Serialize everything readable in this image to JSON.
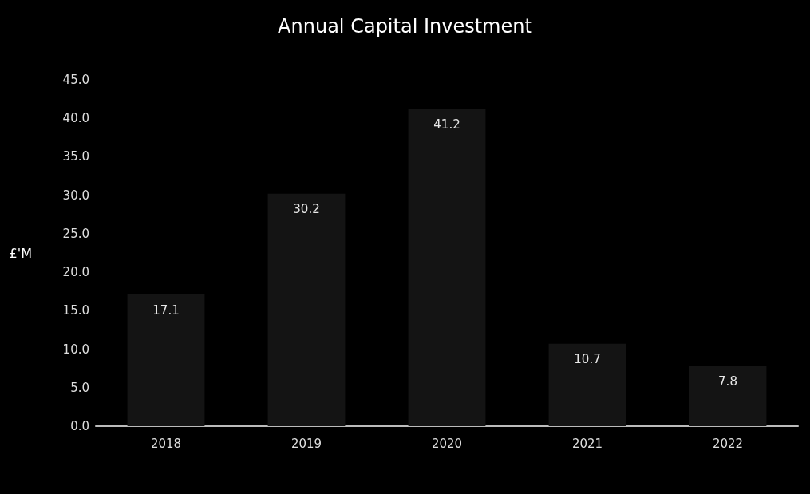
{
  "chart_data": {
    "type": "bar",
    "title": "Annual Capital Investment",
    "ylabel": "£'M",
    "categories": [
      "2018",
      "2019",
      "2020",
      "2021",
      "2022"
    ],
    "values": [
      17.1,
      30.2,
      41.2,
      10.7,
      7.8
    ],
    "value_labels": [
      "17.1",
      "30.2",
      "41.2",
      "10.7",
      "7.8"
    ],
    "color": "#141414",
    "ylim": [
      0,
      45
    ],
    "yticks": [
      {
        "value": 0,
        "label": "0.0"
      },
      {
        "value": 5,
        "label": "5.0"
      },
      {
        "value": 10,
        "label": "10.0"
      },
      {
        "value": 15,
        "label": "15.0"
      },
      {
        "value": 20,
        "label": "20.0"
      },
      {
        "value": 25,
        "label": "25.0"
      },
      {
        "value": 30,
        "label": "30.0"
      },
      {
        "value": 35,
        "label": "35.0"
      },
      {
        "value": 40,
        "label": "40.0"
      },
      {
        "value": 45,
        "label": "45.0"
      }
    ],
    "grid": false
  }
}
